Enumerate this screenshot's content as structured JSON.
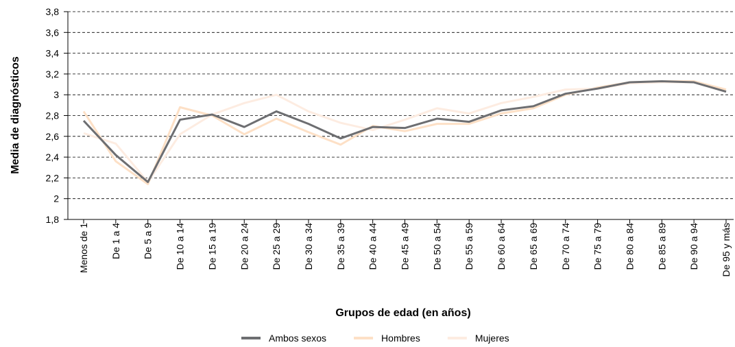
{
  "chart_data": {
    "type": "line",
    "xlabel": "Grupos de edad (en años)",
    "ylabel": "Media de diagnósticos",
    "categories": [
      "Menos de 1",
      "De 1 a 4",
      "De 5 a 9",
      "De 10 a 14",
      "De 15 a 19",
      "De 20 a 24",
      "De 25 a 29",
      "De 30 a 34",
      "De 35 a 39",
      "De 40 a 44",
      "De 45 a 49",
      "De 50 a 54",
      "De 55 a 59",
      "De 60 a 64",
      "De 65 a 69",
      "De 70 a 74",
      "De 75 a 79",
      "De 80 a 84",
      "De 85 a 89",
      "De 90 a 94",
      "De 95 y más"
    ],
    "series": [
      {
        "name": "Hombres",
        "color": "#fde0c6",
        "values": [
          2.84,
          2.36,
          2.14,
          2.88,
          2.8,
          2.62,
          2.77,
          2.64,
          2.52,
          2.7,
          2.65,
          2.72,
          2.72,
          2.82,
          2.87,
          3.0,
          3.07,
          3.12,
          3.13,
          3.13,
          3.05
        ]
      },
      {
        "name": "Mujeres",
        "color": "#fdece1",
        "values": [
          2.63,
          2.53,
          2.16,
          2.62,
          2.81,
          2.92,
          3.0,
          2.84,
          2.73,
          2.66,
          2.76,
          2.87,
          2.82,
          2.92,
          2.98,
          3.05,
          3.06,
          3.11,
          3.12,
          3.12,
          3.03
        ]
      },
      {
        "name": "Ambos sexos",
        "color": "#6d6e71",
        "values": [
          2.75,
          2.42,
          2.16,
          2.76,
          2.81,
          2.69,
          2.84,
          2.72,
          2.58,
          2.69,
          2.68,
          2.77,
          2.74,
          2.85,
          2.89,
          3.01,
          3.06,
          3.12,
          3.13,
          3.12,
          3.03
        ]
      }
    ],
    "legend_order": [
      "Ambos sexos",
      "Hombres",
      "Mujeres"
    ],
    "ylim": [
      1.8,
      3.8
    ],
    "yticks": [
      {
        "value": 1.8,
        "label": "1,8"
      },
      2,
      {
        "value": 2.2,
        "label": "2,2"
      },
      {
        "value": 2.4,
        "label": "2,4"
      },
      {
        "value": 2.6,
        "label": "2,6"
      },
      {
        "value": 2.8,
        "label": "2,8"
      },
      3,
      {
        "value": 3.2,
        "label": "3,2"
      },
      {
        "value": 3.4,
        "label": "3,4"
      },
      {
        "value": 3.6,
        "label": "3,6"
      },
      {
        "value": 3.8,
        "label": "3,8"
      }
    ],
    "grid": true
  }
}
